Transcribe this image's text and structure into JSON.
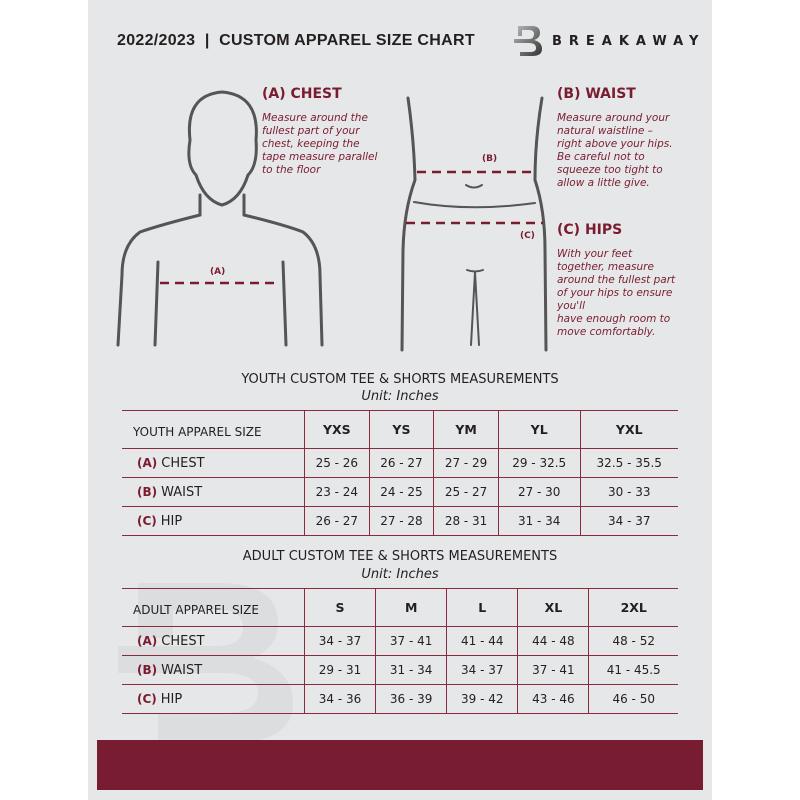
{
  "header": {
    "title": "2022/2023  |  CUSTOM APPAREL SIZE CHART",
    "brand": "BREAKAWAY",
    "brand_logo_letter": "B"
  },
  "colors": {
    "accent": "#7a1c30",
    "background": "#e6e7e8",
    "text": "#231f20"
  },
  "guide": {
    "chest": {
      "heading": "(A) CHEST",
      "text": "Measure around the\nfullest part of your\nchest, keeping the\ntape measure parallel\nto the floor",
      "tag": "(A)"
    },
    "waist": {
      "heading": "(B) WAIST",
      "text": "Measure around your\nnatural waistline –\nright above your hips.\nBe careful not to\nsqueeze too tight to\nallow a little give.",
      "tag": "(B)"
    },
    "hips": {
      "heading": "(C) HIPS",
      "text": "With your feet\ntogether, measure\naround the fullest part\nof your hips to ensure\nyou'll\nhave enough room to\nmove comfortably.",
      "tag": "(C)"
    }
  },
  "youth": {
    "title": "YOUTH CUSTOM TEE & SHORTS MEASUREMENTS",
    "unit": "Unit: Inches",
    "header_label": "YOUTH APPAREL SIZE",
    "sizes": [
      "YXS",
      "YS",
      "YM",
      "YL",
      "YXL"
    ],
    "rows": [
      {
        "letter": "(A)",
        "name": "CHEST",
        "values": [
          "25 - 26",
          "26 - 27",
          "27 - 29",
          "29 - 32.5",
          "32.5 - 35.5"
        ]
      },
      {
        "letter": "(B)",
        "name": "WAIST",
        "values": [
          "23 - 24",
          "24 - 25",
          "25 - 27",
          "27 - 30",
          "30 - 33"
        ]
      },
      {
        "letter": "(C)",
        "name": "HIP",
        "values": [
          "26 - 27",
          "27 - 28",
          "28 - 31",
          "31 - 34",
          "34 - 37"
        ]
      }
    ]
  },
  "adult": {
    "title": "ADULT CUSTOM TEE & SHORTS MEASUREMENTS",
    "unit": "Unit: Inches",
    "header_label": "ADULT APPAREL SIZE",
    "sizes": [
      "S",
      "M",
      "L",
      "XL",
      "2XL"
    ],
    "rows": [
      {
        "letter": "(A)",
        "name": "CHEST",
        "values": [
          "34 - 37",
          "37 - 41",
          "41 - 44",
          "44 - 48",
          "48 - 52"
        ]
      },
      {
        "letter": "(B)",
        "name": "WAIST",
        "values": [
          "29 - 31",
          "31 - 34",
          "34 - 37",
          "37 - 41",
          "41 - 45.5"
        ]
      },
      {
        "letter": "(C)",
        "name": "HIP",
        "values": [
          "34 - 36",
          "36 - 39",
          "39 - 42",
          "43 - 46",
          "46 - 50"
        ]
      }
    ]
  }
}
